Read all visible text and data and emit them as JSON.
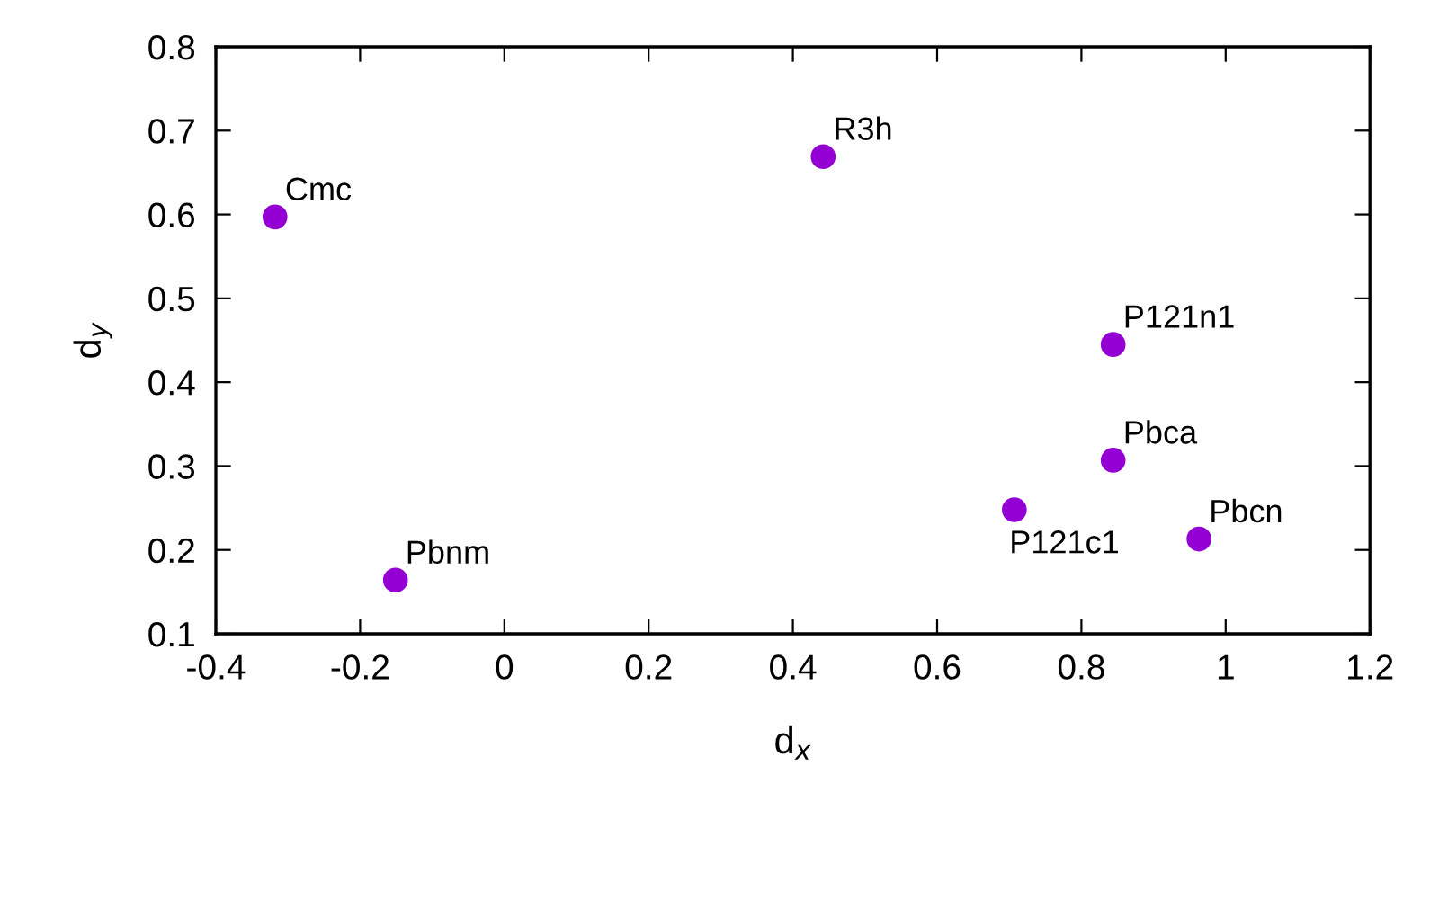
{
  "chart_data": {
    "type": "scatter",
    "xlabel": "d$_{x}$",
    "ylabel": "d$_{y}$",
    "series": [
      {
        "color": "#9400d3",
        "x": [
          -0.318,
          0.442,
          0.844,
          0.844,
          0.707,
          0.963,
          -0.151
        ],
        "values": [
          0.597,
          0.669,
          0.445,
          0.307,
          0.248,
          0.213,
          0.164
        ]
      }
    ],
    "annotations": [
      {
        "text": "Cmc",
        "x": -0.318,
        "y": 0.597
      },
      {
        "text": "R3h",
        "x": 0.442,
        "y": 0.669
      },
      {
        "text": "P121n1",
        "x": 0.844,
        "y": 0.445
      },
      {
        "text": "Pbca",
        "x": 0.844,
        "y": 0.307
      },
      {
        "text": "P121c1",
        "x": 0.707,
        "y": 0.248
      },
      {
        "text": "Pbcn",
        "x": 0.963,
        "y": 0.213
      },
      {
        "text": "Pbnm",
        "x": -0.151,
        "y": 0.164
      }
    ],
    "xlim": [
      -0.4,
      1.2
    ],
    "xticks": [
      -0.4,
      -0.2,
      0,
      0.2,
      0.4,
      0.6,
      0.8,
      1,
      1.2
    ],
    "ylim": [
      0.1,
      0.8
    ],
    "yticks": [
      0.1,
      0.2,
      0.3,
      0.4,
      0.5,
      0.6,
      0.7,
      0.8
    ],
    "marker": "circle",
    "grid": false,
    "legend": false
  }
}
